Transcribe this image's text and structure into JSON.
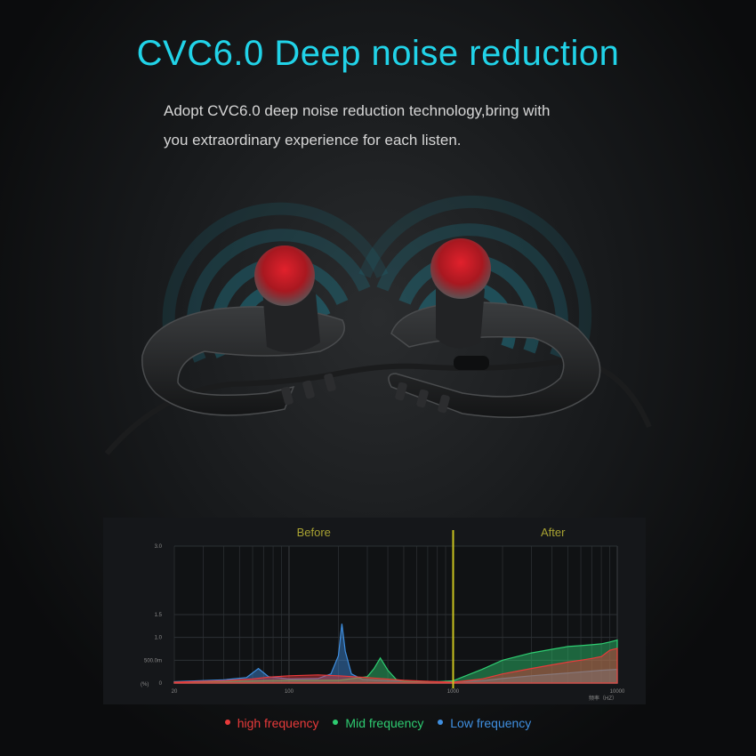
{
  "header": {
    "title": "CVC6.0 Deep noise reduction",
    "line1": "Adopt CVC6.0 deep noise reduction technology,bring with",
    "line2": "you extraordinary experience for each listen."
  },
  "colors": {
    "accent": "#21d3e8",
    "high": "#e83a3a",
    "mid": "#2ecc71",
    "low": "#3f8fe0",
    "divider": "#c8c21e",
    "panel_label": "#a8a232"
  },
  "chart_data": {
    "type": "area",
    "panels": [
      "Before",
      "After"
    ],
    "xscale": "log",
    "xlim": [
      20,
      10000
    ],
    "split_x": 1000,
    "x_ticks": [
      20,
      100,
      1000,
      10000
    ],
    "x_tick_labels": [
      "20",
      "100",
      "1000",
      "10000"
    ],
    "x_unit_label": "频率（HZ）",
    "ylim": [
      0,
      3.0
    ],
    "y_ticks": [
      0,
      0.5,
      1.0,
      1.5,
      3.0
    ],
    "y_tick_labels": [
      "0",
      "500.0m",
      "1.0",
      "1.5",
      "3.0"
    ],
    "y_unit_label": "(%)",
    "series": [
      {
        "name": "high frequency",
        "color": "#e83a3a",
        "x": [
          20,
          40,
          60,
          75,
          100,
          150,
          200,
          300,
          500,
          800,
          1000,
          1500,
          2000,
          3000,
          4000,
          5000,
          6000,
          7000,
          8000,
          9000,
          10000
        ],
        "values": [
          0.02,
          0.05,
          0.09,
          0.13,
          0.16,
          0.18,
          0.16,
          0.12,
          0.06,
          0.03,
          0.02,
          0.09,
          0.2,
          0.32,
          0.4,
          0.46,
          0.5,
          0.54,
          0.58,
          0.72,
          0.76
        ]
      },
      {
        "name": "Mid frequency",
        "color": "#2ecc71",
        "x": [
          20,
          50,
          100,
          200,
          300,
          330,
          360,
          400,
          450,
          500,
          800,
          1000,
          1500,
          2000,
          3000,
          4000,
          5000,
          6000,
          7000,
          8000,
          9000,
          10000
        ],
        "values": [
          0.02,
          0.04,
          0.06,
          0.06,
          0.14,
          0.32,
          0.55,
          0.28,
          0.08,
          0.04,
          0.03,
          0.05,
          0.3,
          0.5,
          0.66,
          0.74,
          0.8,
          0.82,
          0.84,
          0.86,
          0.9,
          0.94
        ]
      },
      {
        "name": "Low frequency",
        "color": "#3f8fe0",
        "x": [
          20,
          40,
          55,
          65,
          75,
          100,
          150,
          180,
          200,
          210,
          220,
          240,
          280,
          400,
          800,
          1000,
          1500,
          2000,
          3000,
          5000,
          8000,
          10000
        ],
        "values": [
          0.03,
          0.07,
          0.12,
          0.32,
          0.14,
          0.09,
          0.1,
          0.2,
          0.6,
          1.3,
          0.7,
          0.2,
          0.08,
          0.05,
          0.03,
          0.03,
          0.05,
          0.1,
          0.16,
          0.22,
          0.28,
          0.3
        ]
      }
    ]
  }
}
